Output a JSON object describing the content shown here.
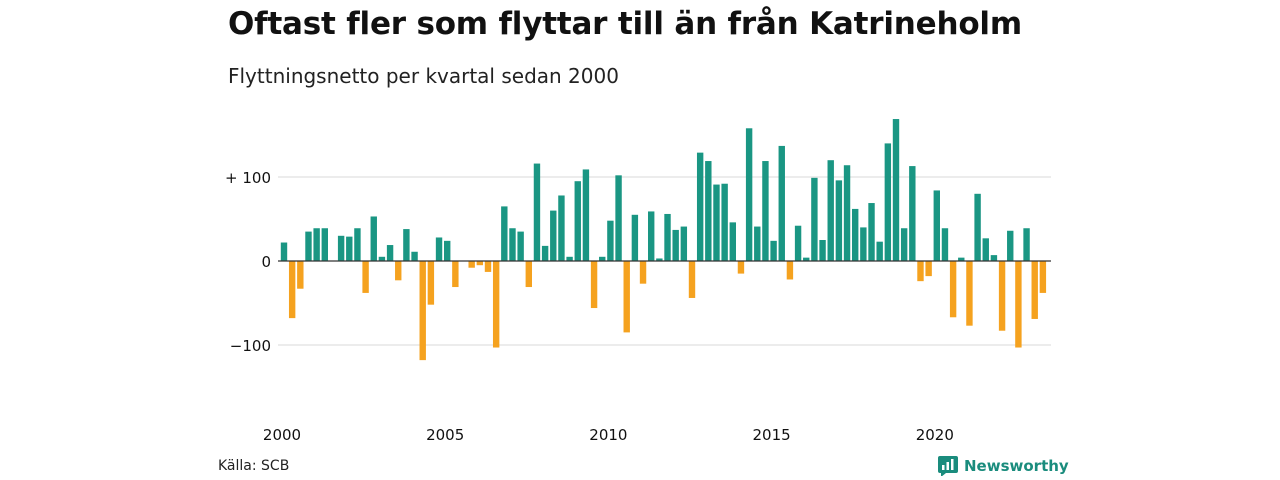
{
  "title": "Oftast fler som flyttar till än från Katrineholm",
  "subtitle": "Flyttningsnetto per kvartal sedan 2000",
  "source": "Källa: SCB",
  "brand": "Newsworthy",
  "colors": {
    "positive": "#1a9683",
    "negative": "#f5a21f",
    "grid": "#d9d9d9",
    "zero": "#333333"
  },
  "chart_data": {
    "type": "bar",
    "title": "Oftast fler som flyttar till än från Katrineholm",
    "subtitle": "Flyttningsnetto per kvartal sedan 2000",
    "x_start": 2000,
    "x_step": 0.25,
    "xticks": [
      2000,
      2005,
      2010,
      2015,
      2020
    ],
    "yticks": [
      100,
      0,
      -100
    ],
    "ytick_labels": [
      "+ 100",
      "0",
      "−100"
    ],
    "ylim": [
      -180,
      190
    ],
    "grid": true,
    "values": [
      22,
      -68,
      -33,
      35,
      39,
      39,
      0,
      30,
      29,
      39,
      -38,
      53,
      5,
      19,
      -23,
      38,
      11,
      -118,
      -52,
      28,
      24,
      -31,
      0,
      -8,
      -5,
      -13,
      -103,
      65,
      39,
      35,
      -31,
      116,
      18,
      60,
      78,
      5,
      95,
      109,
      -56,
      5,
      48,
      102,
      -85,
      55,
      -27,
      59,
      3,
      56,
      37,
      41,
      -44,
      129,
      119,
      91,
      92,
      46,
      -15,
      158,
      41,
      119,
      24,
      137,
      -22,
      42,
      4,
      99,
      25,
      120,
      96,
      114,
      62,
      40,
      69,
      23,
      140,
      169,
      39,
      113,
      -24,
      -18,
      84,
      39,
      -67,
      4,
      -77,
      80,
      27,
      7,
      -83,
      36,
      -103,
      39,
      -69,
      -38
    ]
  }
}
